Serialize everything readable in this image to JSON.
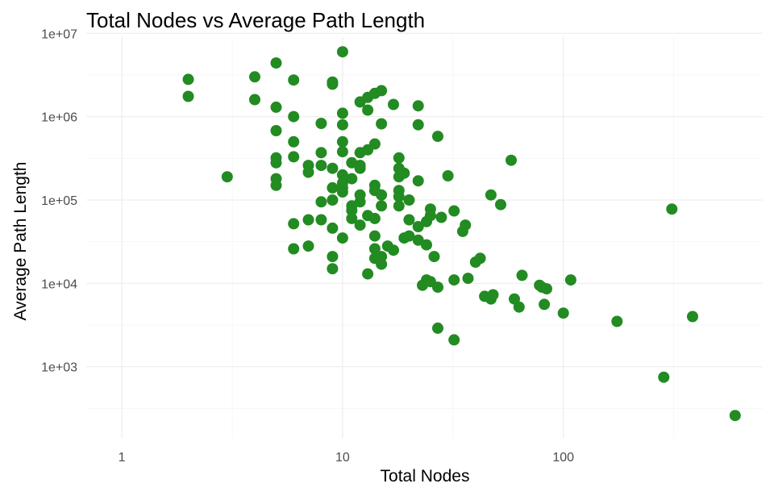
{
  "chart_data": {
    "type": "scatter",
    "title": "Total Nodes vs Average Path Length",
    "xlabel": "Total Nodes",
    "ylabel": "Average Path Length",
    "x_scale": "log10",
    "y_scale": "log10",
    "xlim": [
      0.69,
      800
    ],
    "ylim": [
      140,
      9000000
    ],
    "x_ticks": [
      {
        "value": 1,
        "label": "1"
      },
      {
        "value": 10,
        "label": "10"
      },
      {
        "value": 100,
        "label": "100"
      }
    ],
    "y_ticks": [
      {
        "value": 1000,
        "label": "1e+03"
      },
      {
        "value": 10000,
        "label": "1e+04"
      },
      {
        "value": 100000,
        "label": "1e+05"
      },
      {
        "value": 1000000,
        "label": "1e+06"
      },
      {
        "value": 10000000,
        "label": "1e+07"
      }
    ],
    "grid": true,
    "legend": "none",
    "point_color": "#228B22",
    "points": [
      {
        "x": 2,
        "y": 2800000
      },
      {
        "x": 2,
        "y": 1750000
      },
      {
        "x": 3,
        "y": 190000
      },
      {
        "x": 4,
        "y": 3000000
      },
      {
        "x": 4,
        "y": 1600000
      },
      {
        "x": 5,
        "y": 4400000
      },
      {
        "x": 5,
        "y": 1300000
      },
      {
        "x": 5,
        "y": 680000
      },
      {
        "x": 5,
        "y": 320000
      },
      {
        "x": 5,
        "y": 280000
      },
      {
        "x": 5,
        "y": 180000
      },
      {
        "x": 5,
        "y": 150000
      },
      {
        "x": 6,
        "y": 2750000
      },
      {
        "x": 6,
        "y": 1000000
      },
      {
        "x": 6,
        "y": 500000
      },
      {
        "x": 6,
        "y": 330000
      },
      {
        "x": 6,
        "y": 52000
      },
      {
        "x": 6,
        "y": 26000
      },
      {
        "x": 7,
        "y": 260000
      },
      {
        "x": 7,
        "y": 215000
      },
      {
        "x": 7,
        "y": 58000
      },
      {
        "x": 7,
        "y": 28000
      },
      {
        "x": 8,
        "y": 830000
      },
      {
        "x": 8,
        "y": 370000
      },
      {
        "x": 8,
        "y": 260000
      },
      {
        "x": 8,
        "y": 95000
      },
      {
        "x": 8,
        "y": 58000
      },
      {
        "x": 9,
        "y": 2600000
      },
      {
        "x": 9,
        "y": 2450000
      },
      {
        "x": 9,
        "y": 240000
      },
      {
        "x": 9,
        "y": 140000
      },
      {
        "x": 9,
        "y": 100000
      },
      {
        "x": 9,
        "y": 46000
      },
      {
        "x": 9,
        "y": 21000
      },
      {
        "x": 9,
        "y": 15000
      },
      {
        "x": 10,
        "y": 6000000
      },
      {
        "x": 10,
        "y": 1100000
      },
      {
        "x": 10,
        "y": 800000
      },
      {
        "x": 10,
        "y": 500000
      },
      {
        "x": 10,
        "y": 380000
      },
      {
        "x": 10,
        "y": 200000
      },
      {
        "x": 10,
        "y": 160000
      },
      {
        "x": 10,
        "y": 140000
      },
      {
        "x": 10,
        "y": 125000
      },
      {
        "x": 10,
        "y": 35000
      },
      {
        "x": 11,
        "y": 280000
      },
      {
        "x": 11,
        "y": 180000
      },
      {
        "x": 11,
        "y": 85000
      },
      {
        "x": 11,
        "y": 75000
      },
      {
        "x": 11,
        "y": 60000
      },
      {
        "x": 12,
        "y": 1500000
      },
      {
        "x": 12,
        "y": 370000
      },
      {
        "x": 12,
        "y": 260000
      },
      {
        "x": 12,
        "y": 240000
      },
      {
        "x": 12,
        "y": 115000
      },
      {
        "x": 12,
        "y": 95000
      },
      {
        "x": 12,
        "y": 50000
      },
      {
        "x": 13,
        "y": 1700000
      },
      {
        "x": 13,
        "y": 1200000
      },
      {
        "x": 13,
        "y": 400000
      },
      {
        "x": 13,
        "y": 65000
      },
      {
        "x": 13,
        "y": 13000
      },
      {
        "x": 14,
        "y": 1900000
      },
      {
        "x": 14,
        "y": 470000
      },
      {
        "x": 14,
        "y": 150000
      },
      {
        "x": 14,
        "y": 130000
      },
      {
        "x": 14,
        "y": 60000
      },
      {
        "x": 14,
        "y": 37000
      },
      {
        "x": 14,
        "y": 26000
      },
      {
        "x": 14,
        "y": 20000
      },
      {
        "x": 15,
        "y": 2050000
      },
      {
        "x": 15,
        "y": 820000
      },
      {
        "x": 15,
        "y": 115000
      },
      {
        "x": 15,
        "y": 85000
      },
      {
        "x": 15,
        "y": 21000
      },
      {
        "x": 15,
        "y": 17000
      },
      {
        "x": 16,
        "y": 28000
      },
      {
        "x": 17,
        "y": 1400000
      },
      {
        "x": 17,
        "y": 25000
      },
      {
        "x": 18,
        "y": 320000
      },
      {
        "x": 18,
        "y": 240000
      },
      {
        "x": 18,
        "y": 190000
      },
      {
        "x": 18,
        "y": 130000
      },
      {
        "x": 18,
        "y": 110000
      },
      {
        "x": 18,
        "y": 85000
      },
      {
        "x": 19,
        "y": 210000
      },
      {
        "x": 19,
        "y": 35000
      },
      {
        "x": 20,
        "y": 100000
      },
      {
        "x": 20,
        "y": 58000
      },
      {
        "x": 20,
        "y": 37000
      },
      {
        "x": 22,
        "y": 1350000
      },
      {
        "x": 22,
        "y": 800000
      },
      {
        "x": 22,
        "y": 170000
      },
      {
        "x": 22,
        "y": 48000
      },
      {
        "x": 22,
        "y": 33000
      },
      {
        "x": 23,
        "y": 9500
      },
      {
        "x": 24,
        "y": 55000
      },
      {
        "x": 24,
        "y": 29000
      },
      {
        "x": 24,
        "y": 11000
      },
      {
        "x": 25,
        "y": 78000
      },
      {
        "x": 25,
        "y": 65000
      },
      {
        "x": 25,
        "y": 10500
      },
      {
        "x": 26,
        "y": 21000
      },
      {
        "x": 27,
        "y": 580000
      },
      {
        "x": 27,
        "y": 9000
      },
      {
        "x": 27,
        "y": 2900
      },
      {
        "x": 28,
        "y": 62000
      },
      {
        "x": 30,
        "y": 195000
      },
      {
        "x": 32,
        "y": 74000
      },
      {
        "x": 32,
        "y": 11000
      },
      {
        "x": 32,
        "y": 2100
      },
      {
        "x": 35,
        "y": 42000
      },
      {
        "x": 36,
        "y": 50000
      },
      {
        "x": 37,
        "y": 11500
      },
      {
        "x": 40,
        "y": 18000
      },
      {
        "x": 42,
        "y": 20000
      },
      {
        "x": 44,
        "y": 7000
      },
      {
        "x": 47,
        "y": 115000
      },
      {
        "x": 47,
        "y": 6500
      },
      {
        "x": 48,
        "y": 7300
      },
      {
        "x": 52,
        "y": 88000
      },
      {
        "x": 58,
        "y": 300000
      },
      {
        "x": 60,
        "y": 6500
      },
      {
        "x": 63,
        "y": 5200
      },
      {
        "x": 65,
        "y": 12500
      },
      {
        "x": 78,
        "y": 9500
      },
      {
        "x": 80,
        "y": 9000
      },
      {
        "x": 82,
        "y": 5600
      },
      {
        "x": 84,
        "y": 8600
      },
      {
        "x": 100,
        "y": 4400
      },
      {
        "x": 108,
        "y": 11000
      },
      {
        "x": 175,
        "y": 3500
      },
      {
        "x": 285,
        "y": 750
      },
      {
        "x": 310,
        "y": 78000
      },
      {
        "x": 385,
        "y": 4000
      },
      {
        "x": 600,
        "y": 260
      }
    ]
  }
}
